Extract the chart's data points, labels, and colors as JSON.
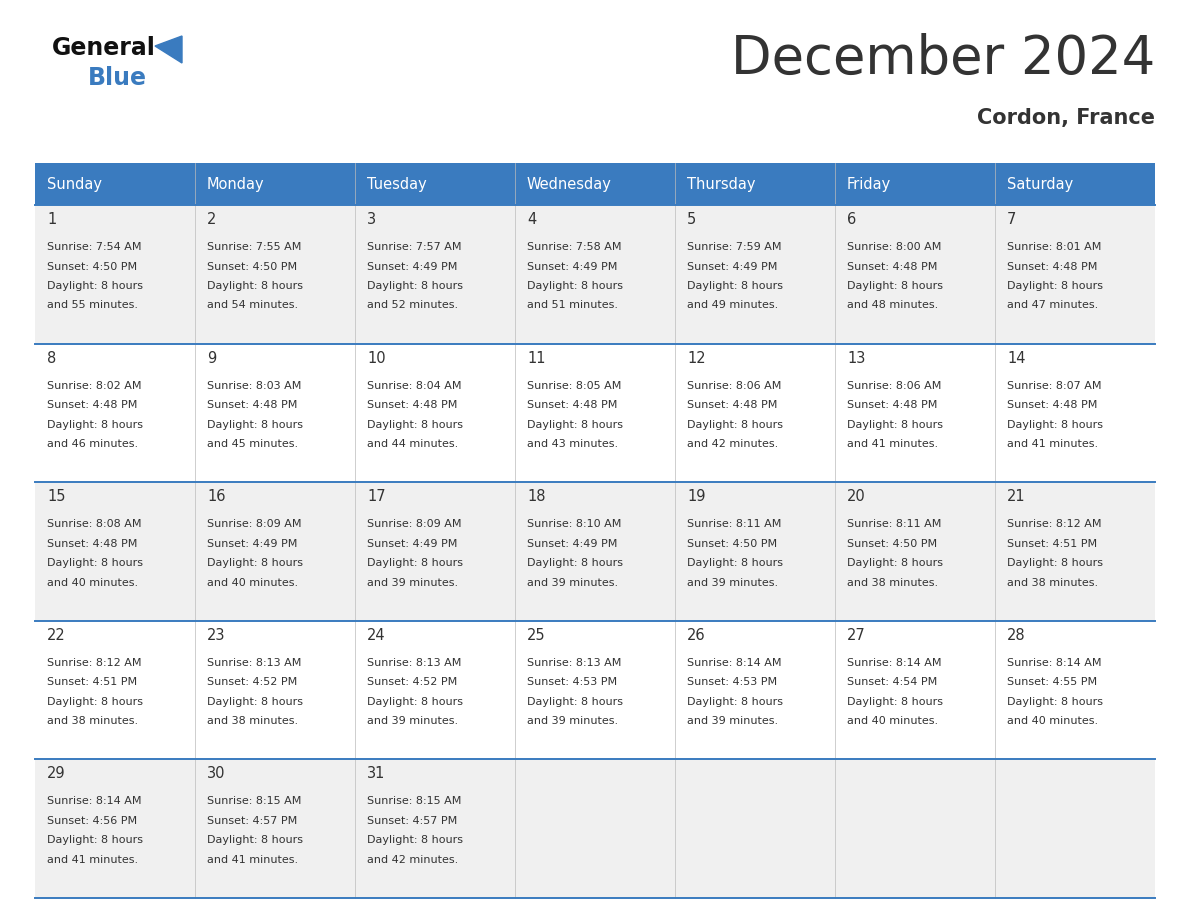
{
  "title": "December 2024",
  "subtitle": "Cordon, France",
  "header_color": "#3a7bbf",
  "header_text_color": "#ffffff",
  "days_of_week": [
    "Sunday",
    "Monday",
    "Tuesday",
    "Wednesday",
    "Thursday",
    "Friday",
    "Saturday"
  ],
  "bg_color": "#ffffff",
  "cell_bg_even": "#f0f0f0",
  "cell_bg_odd": "#ffffff",
  "row_separator_color": "#3a7bbf",
  "text_color": "#333333",
  "logo_general_color": "#111111",
  "logo_blue_color": "#3a7bbf",
  "logo_triangle_color": "#3a7bbf",
  "calendar_data": [
    [
      {
        "day": 1,
        "sunrise": "7:54 AM",
        "sunset": "4:50 PM",
        "daylight_h": "8 hours",
        "daylight_m": "55 minutes"
      },
      {
        "day": 2,
        "sunrise": "7:55 AM",
        "sunset": "4:50 PM",
        "daylight_h": "8 hours",
        "daylight_m": "54 minutes"
      },
      {
        "day": 3,
        "sunrise": "7:57 AM",
        "sunset": "4:49 PM",
        "daylight_h": "8 hours",
        "daylight_m": "52 minutes"
      },
      {
        "day": 4,
        "sunrise": "7:58 AM",
        "sunset": "4:49 PM",
        "daylight_h": "8 hours",
        "daylight_m": "51 minutes"
      },
      {
        "day": 5,
        "sunrise": "7:59 AM",
        "sunset": "4:49 PM",
        "daylight_h": "8 hours",
        "daylight_m": "49 minutes"
      },
      {
        "day": 6,
        "sunrise": "8:00 AM",
        "sunset": "4:48 PM",
        "daylight_h": "8 hours",
        "daylight_m": "48 minutes"
      },
      {
        "day": 7,
        "sunrise": "8:01 AM",
        "sunset": "4:48 PM",
        "daylight_h": "8 hours",
        "daylight_m": "47 minutes"
      }
    ],
    [
      {
        "day": 8,
        "sunrise": "8:02 AM",
        "sunset": "4:48 PM",
        "daylight_h": "8 hours",
        "daylight_m": "46 minutes"
      },
      {
        "day": 9,
        "sunrise": "8:03 AM",
        "sunset": "4:48 PM",
        "daylight_h": "8 hours",
        "daylight_m": "45 minutes"
      },
      {
        "day": 10,
        "sunrise": "8:04 AM",
        "sunset": "4:48 PM",
        "daylight_h": "8 hours",
        "daylight_m": "44 minutes"
      },
      {
        "day": 11,
        "sunrise": "8:05 AM",
        "sunset": "4:48 PM",
        "daylight_h": "8 hours",
        "daylight_m": "43 minutes"
      },
      {
        "day": 12,
        "sunrise": "8:06 AM",
        "sunset": "4:48 PM",
        "daylight_h": "8 hours",
        "daylight_m": "42 minutes"
      },
      {
        "day": 13,
        "sunrise": "8:06 AM",
        "sunset": "4:48 PM",
        "daylight_h": "8 hours",
        "daylight_m": "41 minutes"
      },
      {
        "day": 14,
        "sunrise": "8:07 AM",
        "sunset": "4:48 PM",
        "daylight_h": "8 hours",
        "daylight_m": "41 minutes"
      }
    ],
    [
      {
        "day": 15,
        "sunrise": "8:08 AM",
        "sunset": "4:48 PM",
        "daylight_h": "8 hours",
        "daylight_m": "40 minutes"
      },
      {
        "day": 16,
        "sunrise": "8:09 AM",
        "sunset": "4:49 PM",
        "daylight_h": "8 hours",
        "daylight_m": "40 minutes"
      },
      {
        "day": 17,
        "sunrise": "8:09 AM",
        "sunset": "4:49 PM",
        "daylight_h": "8 hours",
        "daylight_m": "39 minutes"
      },
      {
        "day": 18,
        "sunrise": "8:10 AM",
        "sunset": "4:49 PM",
        "daylight_h": "8 hours",
        "daylight_m": "39 minutes"
      },
      {
        "day": 19,
        "sunrise": "8:11 AM",
        "sunset": "4:50 PM",
        "daylight_h": "8 hours",
        "daylight_m": "39 minutes"
      },
      {
        "day": 20,
        "sunrise": "8:11 AM",
        "sunset": "4:50 PM",
        "daylight_h": "8 hours",
        "daylight_m": "38 minutes"
      },
      {
        "day": 21,
        "sunrise": "8:12 AM",
        "sunset": "4:51 PM",
        "daylight_h": "8 hours",
        "daylight_m": "38 minutes"
      }
    ],
    [
      {
        "day": 22,
        "sunrise": "8:12 AM",
        "sunset": "4:51 PM",
        "daylight_h": "8 hours",
        "daylight_m": "38 minutes"
      },
      {
        "day": 23,
        "sunrise": "8:13 AM",
        "sunset": "4:52 PM",
        "daylight_h": "8 hours",
        "daylight_m": "38 minutes"
      },
      {
        "day": 24,
        "sunrise": "8:13 AM",
        "sunset": "4:52 PM",
        "daylight_h": "8 hours",
        "daylight_m": "39 minutes"
      },
      {
        "day": 25,
        "sunrise": "8:13 AM",
        "sunset": "4:53 PM",
        "daylight_h": "8 hours",
        "daylight_m": "39 minutes"
      },
      {
        "day": 26,
        "sunrise": "8:14 AM",
        "sunset": "4:53 PM",
        "daylight_h": "8 hours",
        "daylight_m": "39 minutes"
      },
      {
        "day": 27,
        "sunrise": "8:14 AM",
        "sunset": "4:54 PM",
        "daylight_h": "8 hours",
        "daylight_m": "40 minutes"
      },
      {
        "day": 28,
        "sunrise": "8:14 AM",
        "sunset": "4:55 PM",
        "daylight_h": "8 hours",
        "daylight_m": "40 minutes"
      }
    ],
    [
      {
        "day": 29,
        "sunrise": "8:14 AM",
        "sunset": "4:56 PM",
        "daylight_h": "8 hours",
        "daylight_m": "41 minutes"
      },
      {
        "day": 30,
        "sunrise": "8:15 AM",
        "sunset": "4:57 PM",
        "daylight_h": "8 hours",
        "daylight_m": "41 minutes"
      },
      {
        "day": 31,
        "sunrise": "8:15 AM",
        "sunset": "4:57 PM",
        "daylight_h": "8 hours",
        "daylight_m": "42 minutes"
      },
      null,
      null,
      null,
      null
    ]
  ]
}
